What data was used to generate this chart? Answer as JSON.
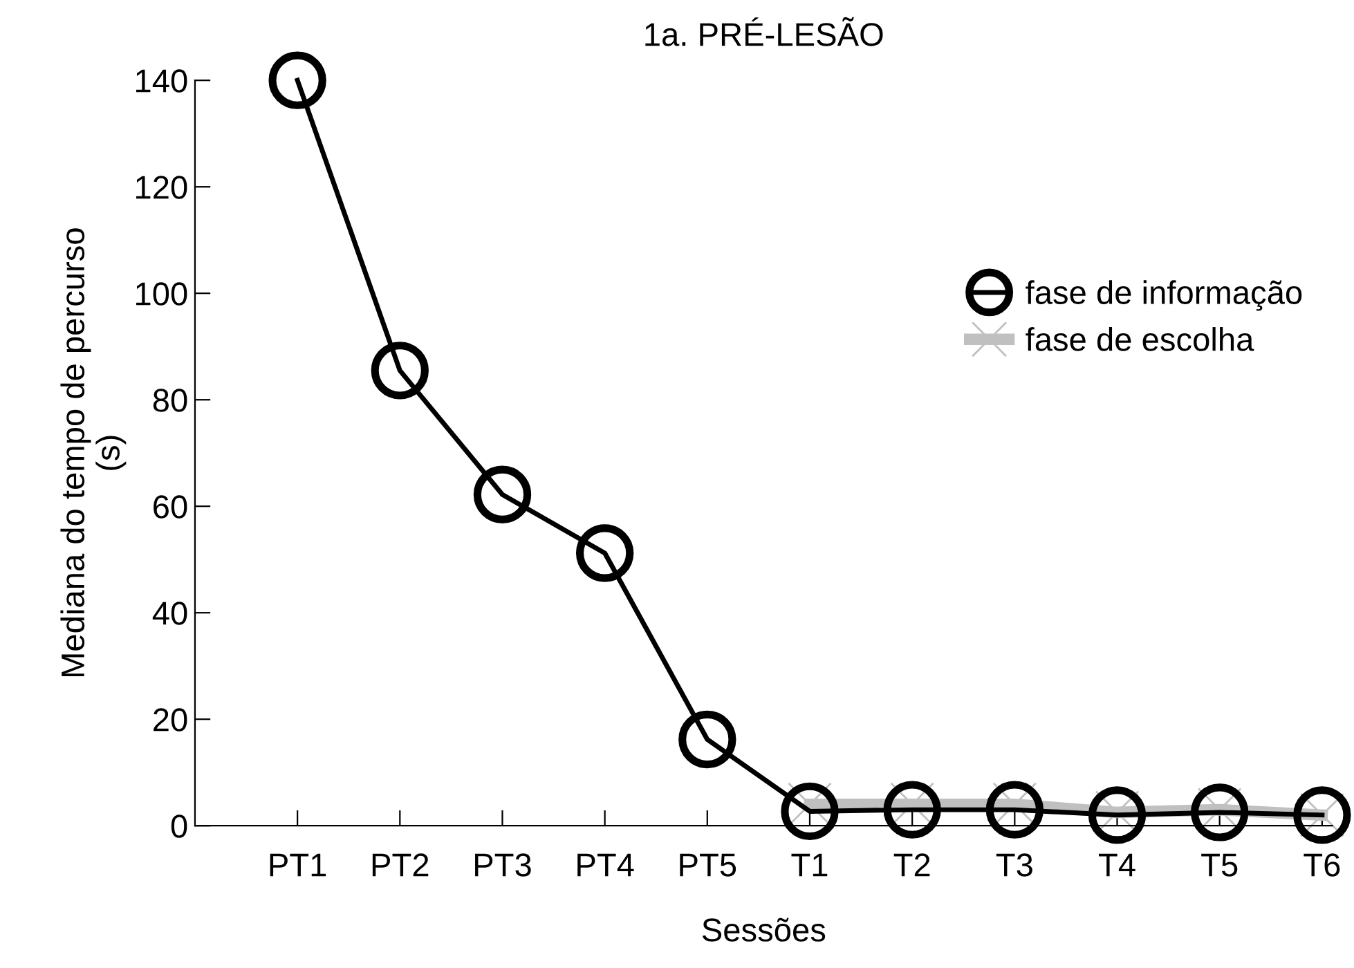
{
  "chart_data": {
    "type": "line",
    "title": "1a. PRÉ-LESÃO",
    "xlabel": "Sessões",
    "ylabel": "Mediana do tempo de percurso\n(s)",
    "categories": [
      "PT1",
      "PT2",
      "PT3",
      "PT4",
      "PT5",
      "T1",
      "T2",
      "T3",
      "T4",
      "T5",
      "T6"
    ],
    "series": [
      {
        "name": "fase de escolha",
        "color": "#c0c0c0",
        "marker": "cross",
        "values": [
          null,
          null,
          null,
          null,
          null,
          4,
          4,
          4,
          2.5,
          3,
          2
        ]
      },
      {
        "name": "fase de informação",
        "color": "#000000",
        "marker": "circle",
        "values": [
          140,
          85.5,
          62.2,
          51.2,
          16.2,
          2.7,
          3,
          3,
          2,
          2.5,
          2
        ]
      }
    ],
    "ylim": [
      0,
      140
    ],
    "yticks": [
      0,
      20,
      40,
      60,
      80,
      100,
      120,
      140
    ],
    "grid": false,
    "legend": "right",
    "line_style": "solid"
  }
}
